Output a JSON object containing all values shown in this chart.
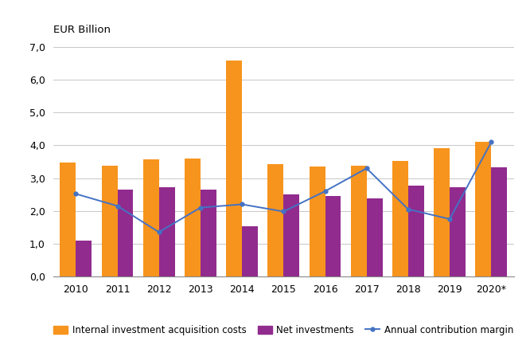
{
  "years": [
    "2010",
    "2011",
    "2012",
    "2013",
    "2014",
    "2015",
    "2016",
    "2017",
    "2018",
    "2019",
    "2020*"
  ],
  "internal_investment": [
    3.48,
    3.38,
    3.57,
    3.6,
    6.58,
    3.43,
    3.35,
    3.37,
    3.53,
    3.92,
    4.12
  ],
  "net_investments": [
    1.08,
    2.65,
    2.73,
    2.65,
    1.52,
    2.5,
    2.45,
    2.38,
    2.78,
    2.72,
    3.33
  ],
  "annual_contribution": [
    2.52,
    2.15,
    1.35,
    2.1,
    2.2,
    1.98,
    2.6,
    3.3,
    2.05,
    1.75,
    4.1
  ],
  "bar_color_orange": "#F7941D",
  "bar_color_purple": "#912B8E",
  "line_color": "#4472C4",
  "ylabel": "EUR Billion",
  "ylim_min": 0.0,
  "ylim_max": 7.0,
  "yticks": [
    0.0,
    1.0,
    2.0,
    3.0,
    4.0,
    5.0,
    6.0,
    7.0
  ],
  "legend_label_orange": "Internal investment acquisition costs",
  "legend_label_purple": "Net investments",
  "legend_label_line": "Annual contribution margin",
  "grid_color": "#BEBEBE",
  "background_color": "#FFFFFF",
  "bar_width": 0.38,
  "line_marker": "o",
  "line_marker_size": 3.5,
  "line_width": 1.4
}
